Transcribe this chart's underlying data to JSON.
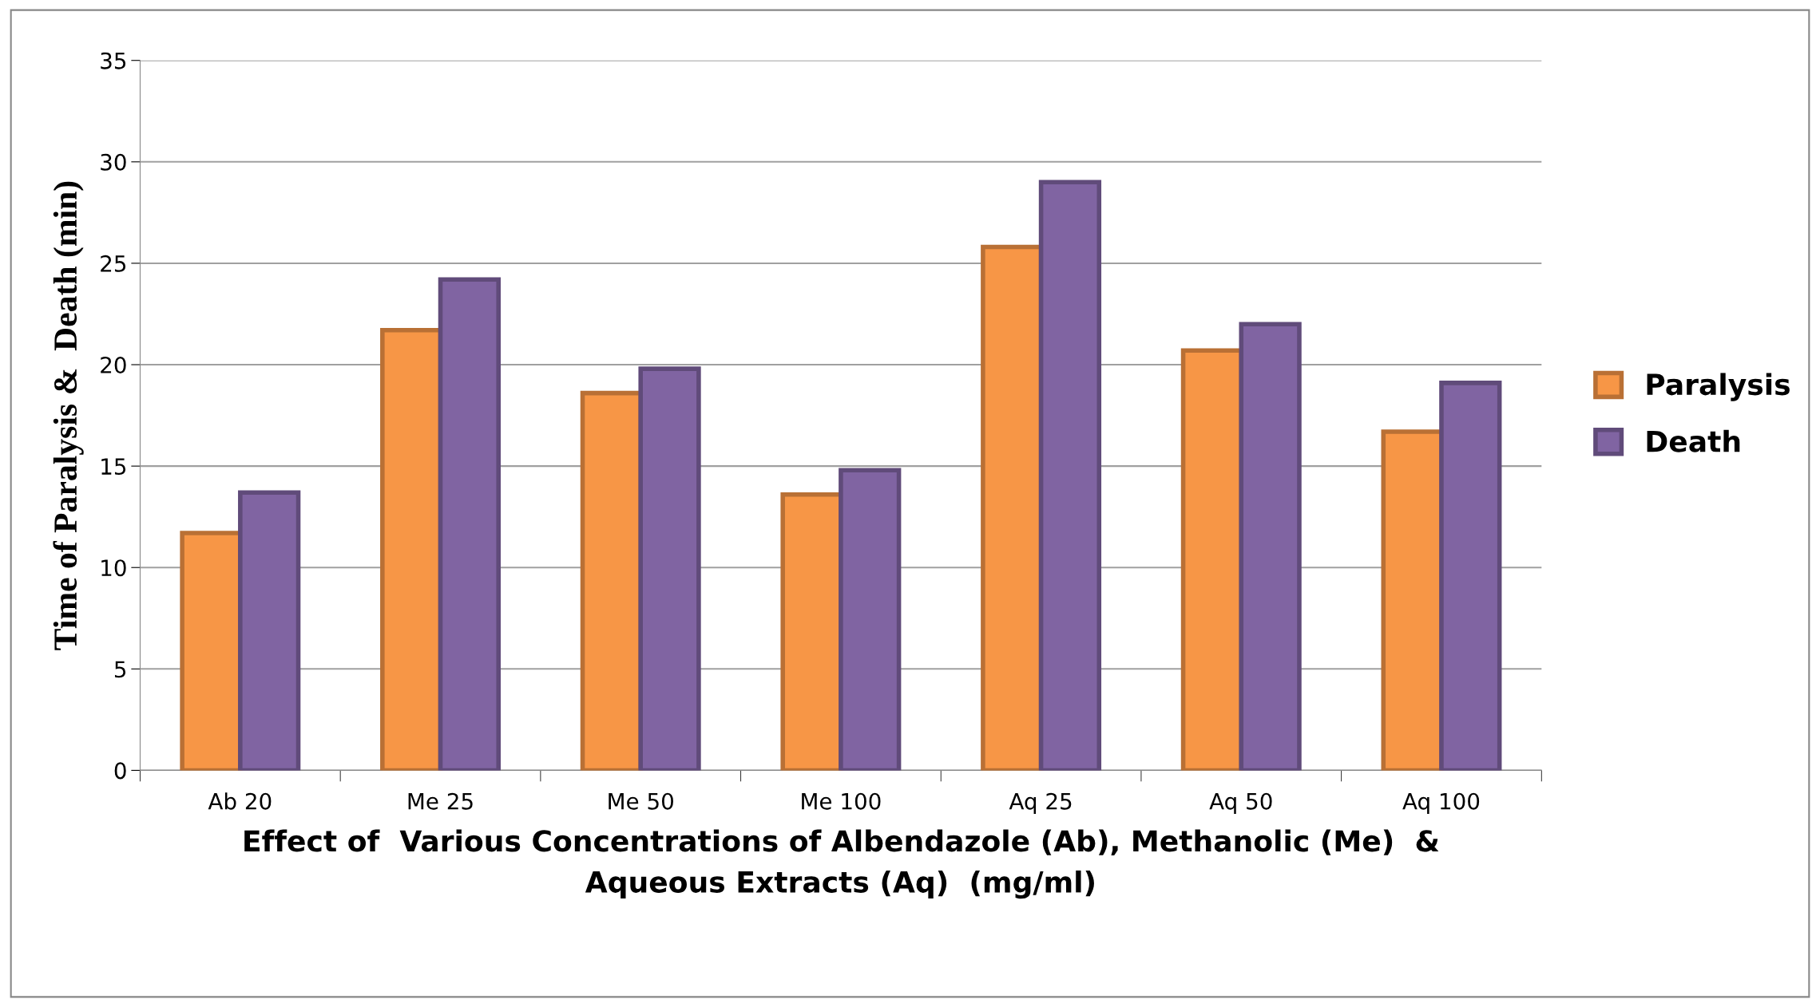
{
  "chart_data": {
    "type": "bar",
    "categories": [
      "Ab 20",
      "Me 25",
      "Me 50",
      "Me 100",
      "Aq 25",
      "Aq 50",
      "Aq 100"
    ],
    "series": [
      {
        "name": "Paralysis",
        "color": "#f79646",
        "values": [
          11.7,
          21.7,
          18.6,
          13.6,
          25.8,
          20.7,
          16.7
        ]
      },
      {
        "name": "Death",
        "color": "#8064a2",
        "values": [
          13.7,
          24.2,
          19.8,
          14.8,
          29.0,
          22.0,
          19.1
        ]
      }
    ],
    "xlabel": "Effect of  Various Concentrations of Albendazole (Ab), Methanolic (Me)  &\nAqueous Extracts (Aq)  (mg/ml)",
    "ylabel": "Time of Paralysis &  Death (min)",
    "ylim": [
      0,
      35
    ],
    "yticks": [
      0,
      5,
      10,
      15,
      20,
      25,
      30,
      35
    ],
    "grid": "y",
    "legend": "right"
  }
}
